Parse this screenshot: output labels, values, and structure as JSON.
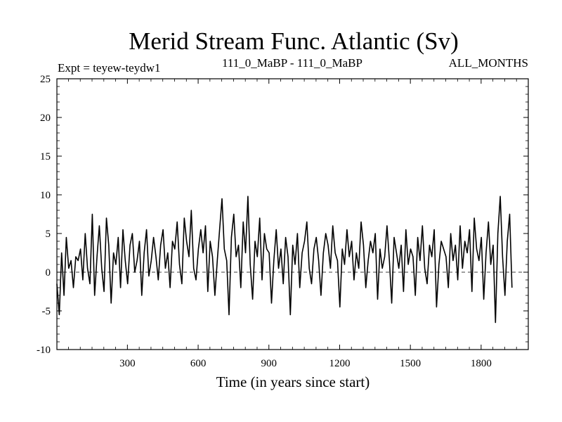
{
  "chart_data": {
    "type": "line",
    "title": "Merid Stream Func. Atlantic (Sv)",
    "subtitle_left": "Expt = teyew-teydw1",
    "subtitle_center": "111_0_MaBP - 111_0_MaBP",
    "subtitle_right": "ALL_MONTHS",
    "xlabel": "Time (in years since start)",
    "ylabel": "",
    "xlim": [
      1,
      2000
    ],
    "ylim": [
      -10,
      25
    ],
    "xticks": [
      300,
      600,
      900,
      1200,
      1500,
      1800
    ],
    "xtick_labels": [
      "300",
      "600",
      "900",
      "1200",
      "1500",
      "1800"
    ],
    "yticks": [
      -10,
      -5,
      0,
      5,
      10,
      15,
      20,
      25
    ],
    "ytick_labels": [
      "-10",
      "-5",
      "0",
      "5",
      "10",
      "15",
      "20",
      "25"
    ],
    "reference_line": 0,
    "series": [
      {
        "name": "Merid Stream Func. Atlantic",
        "x_start": 1,
        "x_step": 10,
        "values": [
          -1.5,
          -5.5,
          2.5,
          -3.0,
          4.5,
          0.5,
          1.5,
          -2.0,
          2.0,
          1.5,
          3.0,
          -1.0,
          5.0,
          0.5,
          -1.5,
          7.5,
          -3.0,
          2.0,
          6.0,
          0.5,
          -2.5,
          7.0,
          3.5,
          -4.0,
          2.5,
          1.0,
          4.5,
          -2.0,
          5.5,
          1.5,
          -1.5,
          3.5,
          5.0,
          0.0,
          1.5,
          4.0,
          -3.0,
          2.5,
          5.5,
          -0.5,
          1.5,
          4.5,
          2.0,
          -1.0,
          3.5,
          5.5,
          0.5,
          2.5,
          -2.0,
          4.0,
          3.0,
          6.5,
          1.0,
          -1.5,
          7.0,
          4.0,
          2.0,
          8.0,
          0.5,
          -1.0,
          3.0,
          5.5,
          2.5,
          6.0,
          -2.5,
          4.0,
          2.0,
          -3.0,
          1.5,
          5.5,
          9.5,
          3.0,
          1.5,
          -5.5,
          4.5,
          7.5,
          2.0,
          3.5,
          -2.0,
          6.5,
          2.5,
          9.8,
          1.0,
          -3.5,
          4.0,
          2.0,
          7.0,
          -1.0,
          5.0,
          3.0,
          2.5,
          -4.0,
          1.5,
          5.5,
          0.5,
          3.0,
          -1.5,
          4.5,
          2.0,
          -5.5,
          3.5,
          1.0,
          5.0,
          -2.0,
          2.5,
          4.0,
          6.5,
          0.5,
          -1.5,
          3.0,
          4.5,
          1.5,
          -3.0,
          2.5,
          5.0,
          3.5,
          0.5,
          6.0,
          2.5,
          1.5,
          -4.5,
          3.0,
          1.0,
          5.5,
          2.0,
          4.0,
          -1.0,
          2.5,
          0.5,
          6.5,
          3.5,
          -2.0,
          1.5,
          4.0,
          2.5,
          5.0,
          -3.5,
          3.0,
          0.5,
          2.0,
          6.0,
          1.5,
          -4.0,
          4.5,
          2.5,
          0.5,
          3.5,
          -2.5,
          5.5,
          1.0,
          3.0,
          2.0,
          -3.0,
          4.5,
          1.5,
          6.0,
          0.5,
          -1.5,
          3.5,
          2.0,
          5.5,
          -4.5,
          1.0,
          4.0,
          3.0,
          2.0,
          -2.0,
          5.0,
          1.5,
          3.5,
          -1.0,
          6.0,
          0.5,
          4.0,
          2.5,
          5.5,
          -2.5,
          7.0,
          3.0,
          1.5,
          4.5,
          -3.5,
          2.5,
          6.5,
          1.0,
          3.5,
          -6.5,
          5.0,
          9.8,
          2.0,
          -3.0,
          4.0,
          7.5,
          -2.0
        ]
      }
    ]
  }
}
